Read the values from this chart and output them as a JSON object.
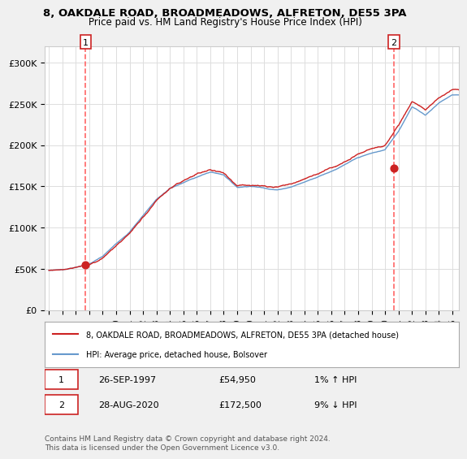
{
  "title_line1": "8, OAKDALE ROAD, BROADMEADOWS, ALFRETON, DE55 3PA",
  "title_line2": "Price paid vs. HM Land Registry's House Price Index (HPI)",
  "background_color": "#f9f9f9",
  "plot_bg_color": "#ffffff",
  "hpi_color": "#6699cc",
  "price_color": "#cc2222",
  "marker_color": "#cc2222",
  "vline_color": "#ff6666",
  "ylim": [
    0,
    320000
  ],
  "yticks": [
    0,
    50000,
    100000,
    150000,
    200000,
    250000,
    300000
  ],
  "ytick_labels": [
    "£0",
    "£50K",
    "£100K",
    "£150K",
    "£200K",
    "£250K",
    "£300K"
  ],
  "sale1_date_num": 1997.73,
  "sale1_price": 54950,
  "sale2_date_num": 2020.66,
  "sale2_price": 172500,
  "legend_house": "8, OAKDALE ROAD, BROADMEADOWS, ALFRETON, DE55 3PA (detached house)",
  "legend_hpi": "HPI: Average price, detached house, Bolsover",
  "annotation1_label": "1",
  "annotation1_date": "26-SEP-1997",
  "annotation1_price": "£54,950",
  "annotation1_hpi": "1% ↑ HPI",
  "annotation2_label": "2",
  "annotation2_date": "28-AUG-2020",
  "annotation2_price": "£172,500",
  "annotation2_hpi": "9% ↓ HPI",
  "footer": "Contains HM Land Registry data © Crown copyright and database right 2024.\nThis data is licensed under the Open Government Licence v3.0."
}
